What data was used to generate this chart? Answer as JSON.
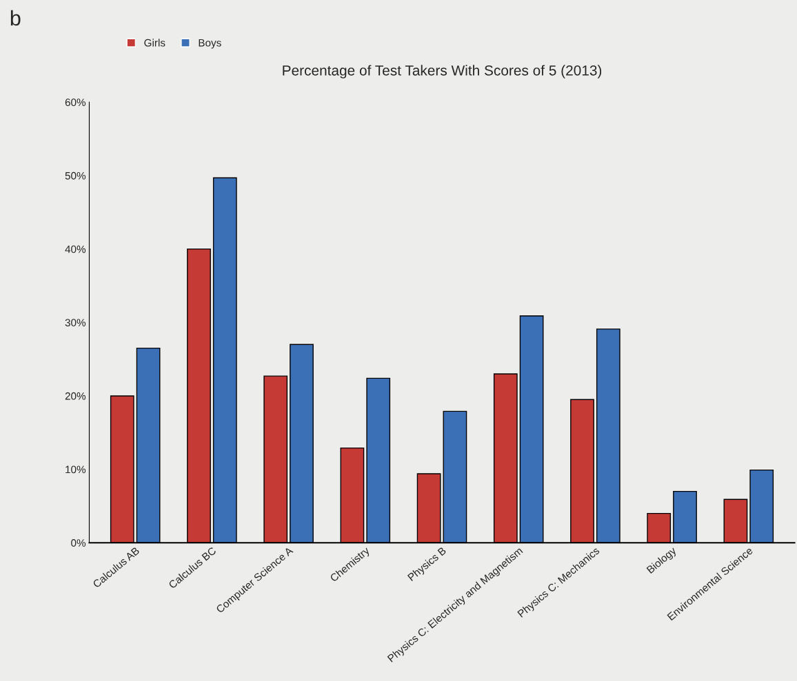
{
  "chart_data": {
    "type": "bar",
    "title": "Percentage of Test Takers With Scores of 5 (2013)",
    "annotations": [
      "b"
    ],
    "categories": [
      "Calculus AB",
      "Calculus BC",
      "Computer Science A",
      "Chemistry",
      "Physics B",
      "Physics C: Electricity and Magnetism",
      "Physics C: Mechanics",
      "Biology",
      "Environmental Science"
    ],
    "series": [
      {
        "name": "Girls",
        "color": "#c63a36",
        "values": [
          20,
          40,
          22.7,
          12.9,
          9.4,
          23,
          19.5,
          4,
          5.9
        ]
      },
      {
        "name": "Boys",
        "color": "#3b6fb6",
        "values": [
          26.5,
          49.7,
          27,
          22.4,
          17.9,
          30.9,
          29.1,
          7,
          9.9
        ]
      }
    ],
    "ylim": [
      0,
      60
    ],
    "yticks": [
      {
        "value": 0,
        "label": "0%"
      },
      {
        "value": 10,
        "label": "10%"
      },
      {
        "value": 20,
        "label": "20%"
      },
      {
        "value": 30,
        "label": "30%"
      },
      {
        "value": 40,
        "label": "40%"
      },
      {
        "value": 50,
        "label": "50%"
      },
      {
        "value": 60,
        "label": "60%"
      }
    ],
    "grid": false,
    "legend": "top left"
  }
}
